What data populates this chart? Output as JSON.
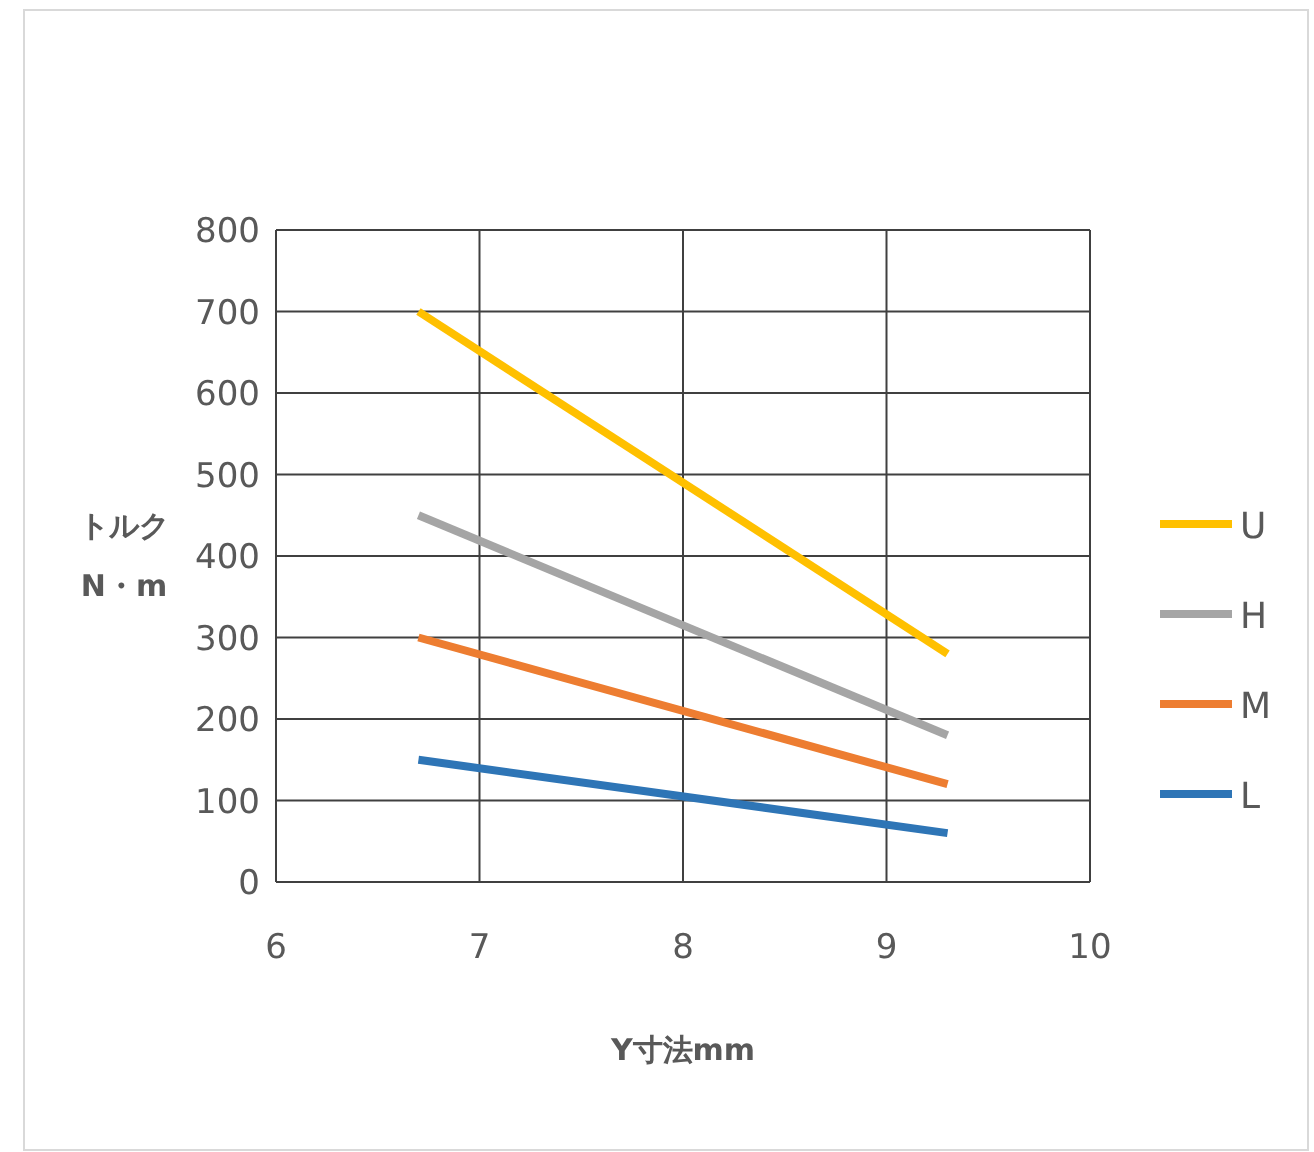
{
  "chart_data": {
    "type": "line",
    "xlabel": "Y寸法mm",
    "ylabel": "トルク\nN・m",
    "xlim": [
      6,
      10
    ],
    "ylim": [
      0,
      800
    ],
    "xticks": [
      6,
      7,
      8,
      9,
      10
    ],
    "yticks": [
      0,
      100,
      200,
      300,
      400,
      500,
      600,
      700,
      800
    ],
    "grid": true,
    "legend": "right",
    "marker": "none",
    "line_style": "solid",
    "x": [
      6.7,
      9.3
    ],
    "series": [
      {
        "name": "U",
        "color": "#ffc000",
        "values": [
          700,
          280
        ]
      },
      {
        "name": "H",
        "color": "#a5a5a5",
        "values": [
          450,
          180
        ]
      },
      {
        "name": "M",
        "color": "#ed7d31",
        "values": [
          300,
          120
        ]
      },
      {
        "name": "L",
        "color": "#2e75b6",
        "values": [
          150,
          60
        ]
      }
    ]
  }
}
